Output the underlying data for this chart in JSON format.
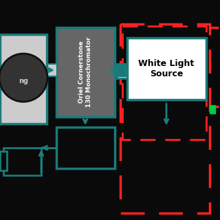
{
  "bg_color": "#0a0a0a",
  "teal_color": "#1a7a7a",
  "gray_box_color": "#666666",
  "light_gray_color": "#cccccc",
  "white_color": "#ffffff",
  "red_dash_color": "#ff2222",
  "green_dot_color": "#00cc44",
  "dark_teal_border": "#1a7a7a",
  "arrow_color": "#1a8080",
  "monochromator_label": "Oriel Cornerstone\n130 Monochromator",
  "white_light_label": "White Light\nSource",
  "sample_label": "ng",
  "fig_width": 3.2,
  "fig_height": 3.2,
  "dpi": 100
}
